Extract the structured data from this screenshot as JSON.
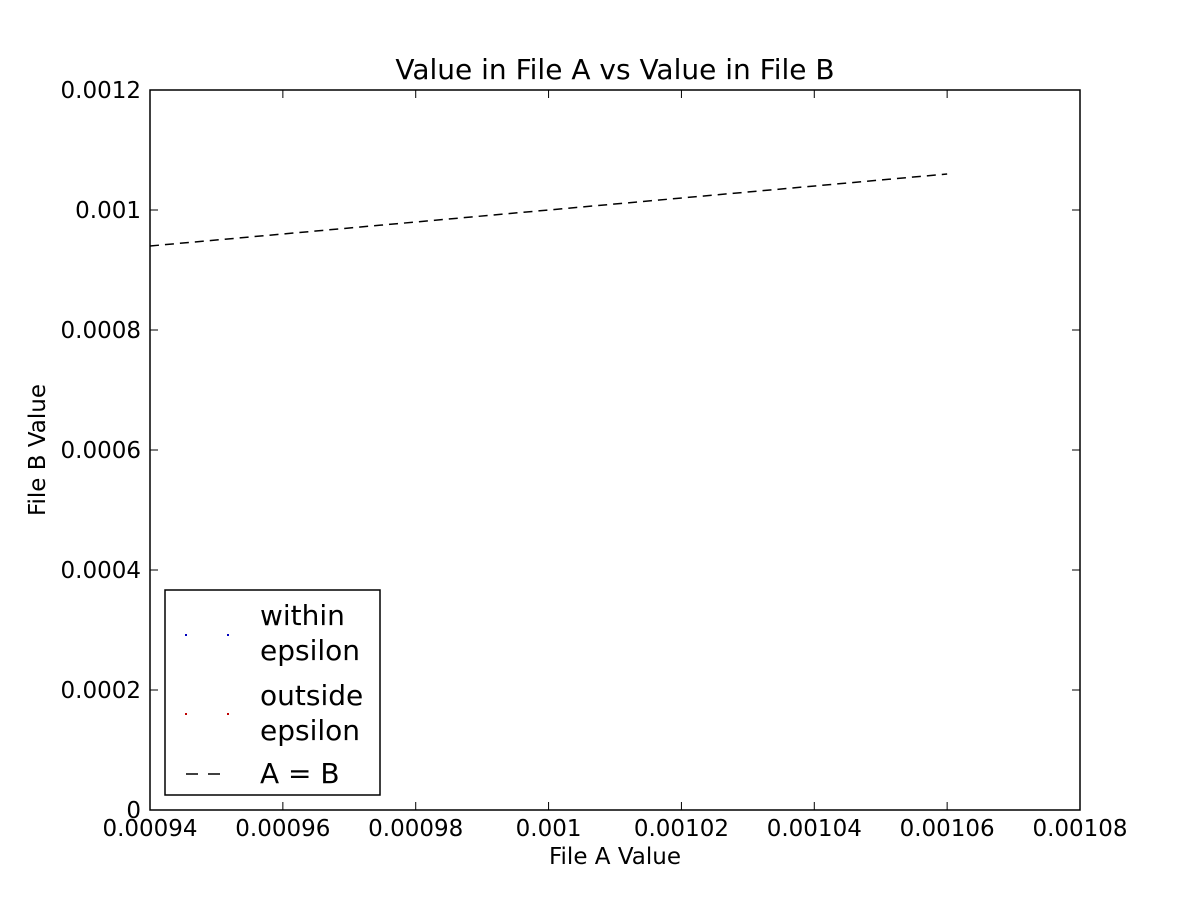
{
  "chart_data": {
    "type": "line",
    "title": "Value in File A vs Value in File B",
    "xlabel": "File A Value",
    "ylabel": "File B Value",
    "xlim": [
      0.00094,
      0.00108
    ],
    "ylim": [
      0,
      0.0012
    ],
    "x_ticks": [
      "0.00094",
      "0.00096",
      "0.00098",
      "0.001",
      "0.00102",
      "0.00104",
      "0.00106",
      "0.00108"
    ],
    "x_tick_values": [
      0.00094,
      0.00096,
      0.00098,
      0.001,
      0.00102,
      0.00104,
      0.00106,
      0.00108
    ],
    "y_ticks": [
      "0",
      "0.0002",
      "0.0004",
      "0.0006",
      "0.0008",
      "0.001",
      "0.0012"
    ],
    "y_tick_values": [
      0,
      0.0002,
      0.0004,
      0.0006,
      0.0008,
      0.001,
      0.0012
    ],
    "grid": false,
    "legend_position": "lower-left",
    "series": [
      {
        "name": "within epsilon",
        "legend_lines": [
          "within",
          "epsilon"
        ],
        "style": "points",
        "color": "#0000bf",
        "x": [],
        "y": []
      },
      {
        "name": "outside epsilon",
        "legend_lines": [
          "outside",
          "epsilon"
        ],
        "style": "points",
        "color": "#bf0000",
        "x": [],
        "y": []
      },
      {
        "name": "A = B",
        "legend_lines": [
          "A = B"
        ],
        "style": "dashed",
        "color": "#000000",
        "x": [
          0.00094,
          0.00106
        ],
        "y": [
          0.00094,
          0.00106
        ]
      }
    ]
  }
}
